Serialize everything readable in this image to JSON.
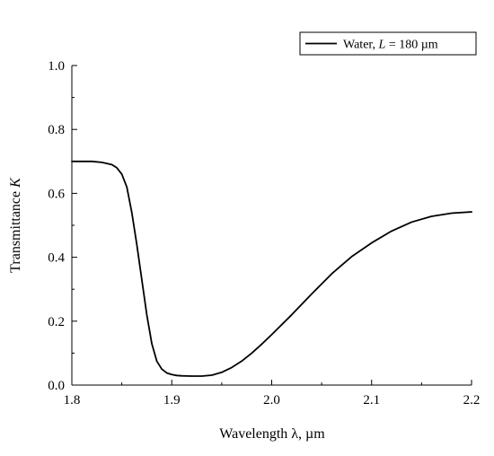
{
  "chart_data": {
    "type": "line",
    "title": "",
    "xlabel": "Wavelength λ, µm",
    "ylabel_prefix": "Transmittance ",
    "ylabel_var": "K",
    "xlim": [
      1.8,
      2.2
    ],
    "ylim": [
      0.0,
      1.0
    ],
    "x_ticks": [
      "1.8",
      "1.9",
      "2.0",
      "2.1",
      "2.2"
    ],
    "y_ticks": [
      "0.0",
      "0.2",
      "0.4",
      "0.6",
      "0.8",
      "1.0"
    ],
    "legend_position": "top-right",
    "line_color": "#000000",
    "series": [
      {
        "legend_prefix": "Water, ",
        "legend_var": "L",
        "legend_suffix": " = 180 µm",
        "x": [
          1.8,
          1.81,
          1.82,
          1.83,
          1.84,
          1.845,
          1.85,
          1.855,
          1.86,
          1.865,
          1.87,
          1.875,
          1.88,
          1.885,
          1.89,
          1.895,
          1.9,
          1.905,
          1.91,
          1.92,
          1.93,
          1.94,
          1.95,
          1.96,
          1.97,
          1.98,
          1.99,
          2.0,
          2.02,
          2.04,
          2.06,
          2.08,
          2.1,
          2.12,
          2.14,
          2.16,
          2.18,
          2.2
        ],
        "y": [
          0.7,
          0.7,
          0.7,
          0.697,
          0.69,
          0.68,
          0.66,
          0.62,
          0.54,
          0.44,
          0.33,
          0.22,
          0.13,
          0.075,
          0.05,
          0.038,
          0.033,
          0.03,
          0.029,
          0.028,
          0.028,
          0.031,
          0.04,
          0.055,
          0.075,
          0.1,
          0.128,
          0.158,
          0.22,
          0.285,
          0.348,
          0.402,
          0.445,
          0.482,
          0.51,
          0.528,
          0.538,
          0.542
        ]
      }
    ]
  }
}
